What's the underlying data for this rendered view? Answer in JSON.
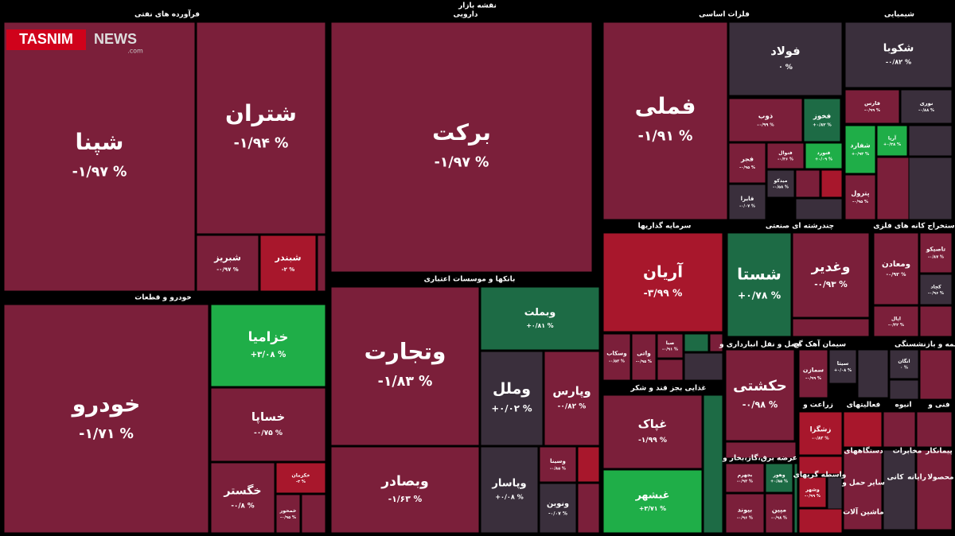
{
  "header": {
    "title": "نقشه بازار"
  },
  "logo": {
    "brand": "TASNIM",
    "suffix": "NEWS",
    "domain": ".com"
  },
  "sectors": [
    {
      "label": "فرآورده های نفتی"
    },
    {
      "label": "دارویی"
    },
    {
      "label": "فلزات اساسی"
    },
    {
      "label": "شیمیایی"
    },
    {
      "label": "خودرو و قطعات"
    },
    {
      "label": "بانکها و موسسات اعتباری"
    },
    {
      "label": "سرمایه گذاریها"
    },
    {
      "label": "چندرشته ای صنعتی"
    },
    {
      "label": "استخراج کانه های فلزی"
    },
    {
      "label": "غذایی بجز قند و شکر"
    },
    {
      "label": "حمل و نقل انبارداری و"
    },
    {
      "label": "سیمان آهک گچ"
    },
    {
      "label": "بیمه و بازنشستگی"
    },
    {
      "label": "زراعت و"
    },
    {
      "label": "عرضه برق،گاز،بخار و"
    },
    {
      "label": "فعالیتهای"
    },
    {
      "label": "انبوه"
    },
    {
      "label": "فنی و"
    },
    {
      "label": "دستگاههای"
    },
    {
      "label": "مخابرات"
    },
    {
      "label": "پیمانکار"
    },
    {
      "label": "واسطه گریهای"
    },
    {
      "label": "سایر حمل و"
    },
    {
      "label": "کانی"
    },
    {
      "label": "رایانه"
    },
    {
      "label": "محصولا"
    },
    {
      "label": "ماشین آلات"
    }
  ],
  "tiles": [
    {
      "name": "شپنا",
      "change": "-۱/۹۷ %"
    },
    {
      "name": "شتران",
      "change": "-۱/۹۴ %"
    },
    {
      "name": "شبریز",
      "change": "-۰/۹۷ %"
    },
    {
      "name": "شبندر",
      "change": "-۲ %"
    },
    {
      "name": "برکت",
      "change": "-۱/۹۷ %"
    },
    {
      "name": "خودرو",
      "change": "-۱/۷۱ %"
    },
    {
      "name": "خزامیا",
      "change": "+۳/۰۸ %"
    },
    {
      "name": "خساپا",
      "change": "-۰/۷۵ %"
    },
    {
      "name": "خگستر",
      "change": "-۰/۸ %"
    },
    {
      "name": "خکرمان",
      "change": "-۳ %"
    },
    {
      "name": "خمحور",
      "change": "-۰/۹۵ %"
    },
    {
      "name": "وتجارت",
      "change": "-۱/۸۳ %"
    },
    {
      "name": "وبصادر",
      "change": "-۱/۶۳ %"
    },
    {
      "name": "وبملت",
      "change": "+۰/۸۱ %"
    },
    {
      "name": "وملل",
      "change": "+۰/۰۲ %"
    },
    {
      "name": "وپارس",
      "change": "-۰/۸۲ %"
    },
    {
      "name": "وپاسار",
      "change": "+۰/۰۸ %"
    },
    {
      "name": "وسینا",
      "change": "-۰/۸۵ %"
    },
    {
      "name": "ونوین",
      "change": "-۰/۰۷ %"
    },
    {
      "name": "فملی",
      "change": "-۱/۹۱ %"
    },
    {
      "name": "فولاد",
      "change": "۰ %"
    },
    {
      "name": "ذوب",
      "change": "-۰/۹۹ %"
    },
    {
      "name": "فخوز",
      "change": "+۰/۸۲ %"
    },
    {
      "name": "فجر",
      "change": "-۰/۹۵ %"
    },
    {
      "name": "فنوال",
      "change": "-۰/۳۶ %"
    },
    {
      "name": "فنورد",
      "change": "+۰/۰۹ %"
    },
    {
      "name": "میدکو",
      "change": "-۰/۵۸ %"
    },
    {
      "name": "فایرا",
      "change": "-۰/۰۷ %"
    },
    {
      "name": "شکوبا",
      "change": "-۰/۸۲ %"
    },
    {
      "name": "فارس",
      "change": "-۰/۹۹ %"
    },
    {
      "name": "نوری",
      "change": "-۰/۸۸ %"
    },
    {
      "name": "شفارد",
      "change": "+۰/۹۳ %"
    },
    {
      "name": "آریا",
      "change": "+۰/۳۸ %"
    },
    {
      "name": "پترول",
      "change": "-۰/۹۵ %"
    },
    {
      "name": "آریان",
      "change": "-۳/۹۹ %"
    },
    {
      "name": "شستا",
      "change": "+۰/۷۸ %"
    },
    {
      "name": "وغدیر",
      "change": "-۰/۹۳ %"
    },
    {
      "name": "ومعادن",
      "change": "-۰/۹۲ %"
    },
    {
      "name": "تاصیکو",
      "change": "-۰/۸۷ %"
    },
    {
      "name": "کچاد",
      "change": "-۰/۹۶ %"
    },
    {
      "name": "اپال",
      "change": "-۰/۴۲ %"
    },
    {
      "name": "وسکاب",
      "change": "-۰/۵۲ %"
    },
    {
      "name": "واتی",
      "change": "-۰/۹۵ %"
    },
    {
      "name": "صبا",
      "change": "-۰/۹۱ %"
    },
    {
      "name": "غپاک",
      "change": "-۱/۹۹ %"
    },
    {
      "name": "غبشهر",
      "change": "+۳/۷۱ %"
    },
    {
      "name": "حکشتی",
      "change": "-۰/۹۸ %"
    },
    {
      "name": "سمازن",
      "change": "-۰/۹۹ %"
    },
    {
      "name": "سیتا",
      "change": "+۰/۰۸ %"
    },
    {
      "name": "انگان",
      "change": "۰ %"
    },
    {
      "name": "زشگزا",
      "change": "-۰/۸۳ %"
    },
    {
      "name": "بجهرم",
      "change": "-۰/۹۳ %"
    },
    {
      "name": "وهور",
      "change": "+۰/۸۵ %"
    },
    {
      "name": "بیوند",
      "change": "-۰/۹۶ %"
    },
    {
      "name": "مپین",
      "change": "-۰/۹۸ %"
    },
    {
      "name": "وشهر",
      "change": "-۰/۹۹ %"
    }
  ]
}
